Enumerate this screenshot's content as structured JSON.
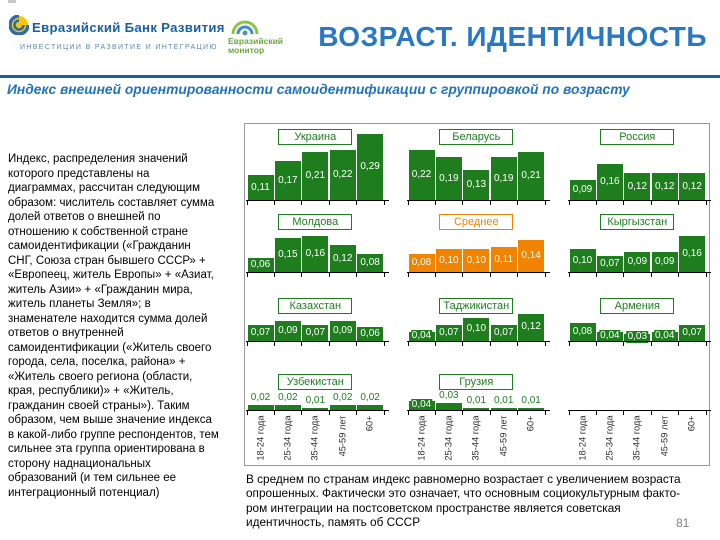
{
  "header": {
    "bank_name": "Евразийский Банк Развития",
    "bank_tagline": "ИНВЕСТИЦИИ В РАЗВИТИЕ И ИНТЕГРАЦИЮ",
    "monitor_line1": "Евразийский",
    "monitor_line2": "монитор",
    "title": "ВОЗРАСТ. ИДЕНТИЧНОСТЬ"
  },
  "subtitle": "Индекс внешней ориентированности самоидентификации с группировкой по возрасту",
  "left_text_lines": [
    "Индекс, распределения значений",
    "которого представлены на",
    "диаграммах, рассчитан следующим",
    "образом: числитель составляет сумма",
    "долей ответов о внешней по",
    "отношению к собственной стране",
    "самоидентификации («Гражданин",
    "СНГ, Союза стран бывшего СССР» +",
    "«Европеец, житель Европы» + «Азиат,",
    "житель Азии» + «Гражданин мира,",
    "житель планеты Земля»; в",
    "знаменателе находится сумма долей",
    "ответов о внутренней",
    "самоидентификации («Житель своего",
    "города, села, поселка, района» +",
    "«Житель своего региона (области,",
    "края, республики)» + «Житель,",
    "гражданин своей страны»). Таким",
    "образом, чем выше значение индекса",
    "в какой-либо группе респондентов, тем",
    "сильнее эта группа ориентирована в",
    "сторону наднациональных",
    "образований (и тем сильнее ее",
    "интеграционный потенциал)"
  ],
  "bottom_text_lines": [
    "В среднем по странам индекс равномерно возрастает с увеличением возраста",
    "опрошенных. Фактически это означает, что основным социокультурным факто-",
    "ром интеграции на постсоветском пространстве является советская",
    "идентичность, память об СССР"
  ],
  "page_number": "81",
  "colors": {
    "green": "#1e7e1e",
    "orange": "#f08300"
  },
  "chart_data": {
    "type": "bar",
    "categories": [
      "18-24 года",
      "25-34 года",
      "35-44 года",
      "45-59 лет",
      "60+"
    ],
    "ylim": [
      0,
      0.3
    ],
    "grid": "off",
    "charts": [
      {
        "title": "Украина",
        "color": "green",
        "values": [
          0.11,
          0.17,
          0.21,
          0.22,
          0.29
        ]
      },
      {
        "title": "Беларусь",
        "color": "green",
        "values": [
          0.22,
          0.19,
          0.13,
          0.19,
          0.21
        ]
      },
      {
        "title": "Россия",
        "color": "green",
        "values": [
          0.09,
          0.16,
          0.12,
          0.12,
          0.12
        ]
      },
      {
        "title": "Молдова",
        "color": "green",
        "values": [
          0.06,
          0.15,
          0.16,
          0.12,
          0.08
        ]
      },
      {
        "title": "Среднее",
        "color": "orange",
        "values": [
          0.08,
          0.1,
          0.1,
          0.11,
          0.14
        ]
      },
      {
        "title": "Кыргызстан",
        "color": "green",
        "values": [
          0.1,
          0.07,
          0.09,
          0.09,
          0.16
        ]
      },
      {
        "title": "Казахстан",
        "color": "green",
        "values": [
          0.07,
          0.09,
          0.07,
          0.09,
          0.06
        ]
      },
      {
        "title": "Таджикистан",
        "color": "green",
        "values": [
          0.04,
          0.07,
          0.1,
          0.07,
          0.12
        ]
      },
      {
        "title": "Армения",
        "color": "green",
        "values": [
          0.08,
          0.04,
          0.03,
          0.04,
          0.07
        ]
      },
      {
        "title": "Узбекистан",
        "color": "green",
        "values": [
          0.02,
          0.02,
          0.01,
          0.02,
          0.02
        ],
        "labels_outside": [
          true,
          true,
          true,
          true,
          true
        ]
      },
      {
        "title": "Грузия",
        "color": "green",
        "values": [
          0.04,
          0.03,
          0.01,
          0.01,
          0.01
        ],
        "labels_outside": [
          false,
          true,
          true,
          true,
          true
        ]
      },
      {
        "title": "",
        "color": "green",
        "values": []
      }
    ]
  }
}
